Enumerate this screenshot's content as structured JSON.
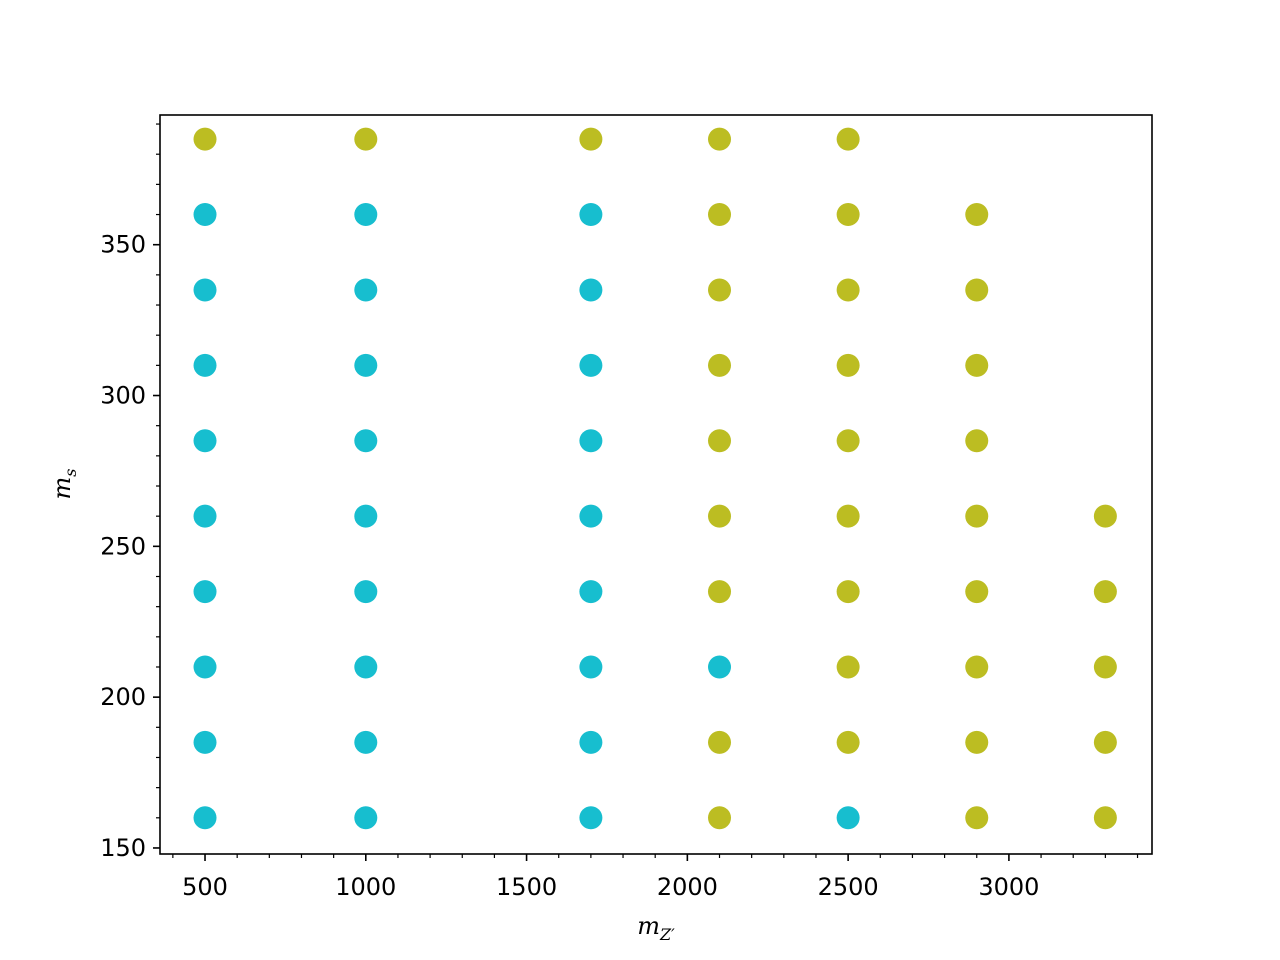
{
  "chart_data": {
    "type": "scatter",
    "title": "",
    "xlabel": "m",
    "xlabel_subscript": "Z′",
    "ylabel": "m",
    "ylabel_subscript": "s",
    "xlim": [
      360,
      3445
    ],
    "ylim": [
      148,
      393
    ],
    "xticks": [
      500,
      1000,
      1500,
      2000,
      2500,
      3000
    ],
    "xtick_labels": [
      "500",
      "1000",
      "1500",
      "2000",
      "2500",
      "3000"
    ],
    "x_minor_step": 100,
    "yticks": [
      150,
      200,
      250,
      300,
      350
    ],
    "ytick_labels": [
      "150",
      "200",
      "250",
      "300",
      "350"
    ],
    "y_minor_step": 10,
    "grid": false,
    "legend": "none",
    "colors": {
      "cyan": "#17becf",
      "olive": "#bcbd22"
    },
    "series": [
      {
        "name": "cyan",
        "color": "#17becf",
        "points": [
          [
            500,
            160
          ],
          [
            500,
            185
          ],
          [
            500,
            210
          ],
          [
            500,
            235
          ],
          [
            500,
            260
          ],
          [
            500,
            285
          ],
          [
            500,
            310
          ],
          [
            500,
            335
          ],
          [
            500,
            360
          ],
          [
            1000,
            160
          ],
          [
            1000,
            185
          ],
          [
            1000,
            210
          ],
          [
            1000,
            235
          ],
          [
            1000,
            260
          ],
          [
            1000,
            285
          ],
          [
            1000,
            310
          ],
          [
            1000,
            335
          ],
          [
            1000,
            360
          ],
          [
            1700,
            160
          ],
          [
            1700,
            185
          ],
          [
            1700,
            210
          ],
          [
            1700,
            235
          ],
          [
            1700,
            260
          ],
          [
            1700,
            285
          ],
          [
            1700,
            310
          ],
          [
            1700,
            335
          ],
          [
            1700,
            360
          ],
          [
            2100,
            210
          ],
          [
            2500,
            160
          ]
        ]
      },
      {
        "name": "olive",
        "color": "#bcbd22",
        "points": [
          [
            500,
            385
          ],
          [
            1000,
            385
          ],
          [
            1700,
            385
          ],
          [
            2100,
            160
          ],
          [
            2100,
            185
          ],
          [
            2100,
            235
          ],
          [
            2100,
            260
          ],
          [
            2100,
            285
          ],
          [
            2100,
            310
          ],
          [
            2100,
            335
          ],
          [
            2100,
            360
          ],
          [
            2100,
            385
          ],
          [
            2500,
            185
          ],
          [
            2500,
            210
          ],
          [
            2500,
            235
          ],
          [
            2500,
            260
          ],
          [
            2500,
            285
          ],
          [
            2500,
            310
          ],
          [
            2500,
            335
          ],
          [
            2500,
            360
          ],
          [
            2500,
            385
          ],
          [
            2900,
            160
          ],
          [
            2900,
            185
          ],
          [
            2900,
            210
          ],
          [
            2900,
            235
          ],
          [
            2900,
            260
          ],
          [
            2900,
            285
          ],
          [
            2900,
            310
          ],
          [
            2900,
            335
          ],
          [
            2900,
            360
          ],
          [
            3300,
            160
          ],
          [
            3300,
            185
          ],
          [
            3300,
            210
          ],
          [
            3300,
            235
          ],
          [
            3300,
            260
          ]
        ]
      }
    ]
  }
}
